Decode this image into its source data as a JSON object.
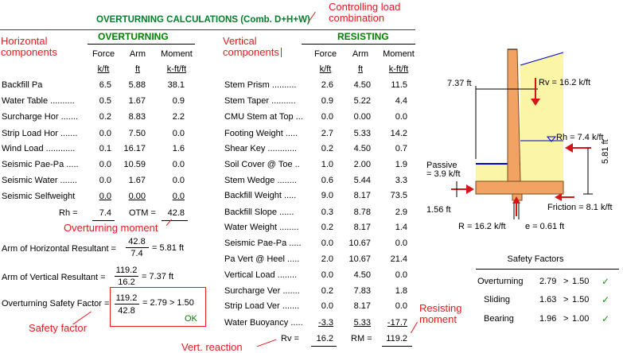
{
  "title": "OVERTURNING CALCULATIONS (Comb. D+H+W)",
  "annotations": {
    "controlling_load": "Controlling load combination",
    "horizontal_components": "Horizontal components",
    "vertical_components": "Vertical components",
    "overturning_moment": "Overturning moment",
    "safety_factor": "Safety factor",
    "resisting_moment": "Resisting moment",
    "vert_reaction": "Vert. reaction"
  },
  "overturning": {
    "heading": "OVERTURNING",
    "col_labels": [
      "Force",
      "Arm",
      "Moment"
    ],
    "col_units": [
      "k/ft",
      "ft",
      "k-ft/ft"
    ],
    "rows": [
      {
        "label": "Backfill Pa",
        "force": "6.5",
        "arm": "5.88",
        "moment": "38.1"
      },
      {
        "label": "Water Table ..........",
        "force": "0.5",
        "arm": "1.67",
        "moment": "0.9"
      },
      {
        "label": "Surcharge Hor .......",
        "force": "0.2",
        "arm": "8.83",
        "moment": "2.2"
      },
      {
        "label": "Strip Load Hor .......",
        "force": "0.0",
        "arm": "7.50",
        "moment": "0.0"
      },
      {
        "label": "Wind Load ............",
        "force": "0.1",
        "arm": "16.17",
        "moment": "1.6"
      },
      {
        "label": "Seismic Pae-Pa .....",
        "force": "0.0",
        "arm": "10.59",
        "moment": "0.0"
      },
      {
        "label": "Seismic Water .......",
        "force": "0.0",
        "arm": "1.67",
        "moment": "0.0"
      },
      {
        "label": "Seismic Selfweight",
        "force": "0.0",
        "arm": "0.00",
        "moment": "0.0"
      }
    ],
    "rh_label": "Rh =",
    "rh_value": "7.4",
    "otm_label": "OTM =",
    "otm_value": "42.8"
  },
  "horizontal_resultant": {
    "label": "Arm of Horizontal Resultant =",
    "numerator": "42.8",
    "denominator": "7.4",
    "result": "= 5.81  ft"
  },
  "vertical_resultant": {
    "label": "Arm of Vertical Resultant =",
    "numerator": "119.2",
    "denominator": "16.2",
    "result": "= 7.37  ft"
  },
  "overturning_sf": {
    "label": "Overturning Safety Factor =",
    "numerator": "119.2",
    "denominator": "42.8",
    "result": "= 2.79 > 1.50",
    "status": "OK"
  },
  "resisting": {
    "heading": "RESISTING",
    "col_labels": [
      "Force",
      "Arm",
      "Moment"
    ],
    "col_units": [
      "k/ft",
      "ft",
      "k-ft/ft"
    ],
    "rows": [
      {
        "label": "Stem Prism ..........",
        "force": "2.6",
        "arm": "4.50",
        "moment": "11.5"
      },
      {
        "label": "Stem Taper ..........",
        "force": "0.9",
        "arm": "5.22",
        "moment": "4.4"
      },
      {
        "label": "CMU Stem at Top ...",
        "force": "0.0",
        "arm": "0.00",
        "moment": "0.0"
      },
      {
        "label": "Footing Weight .....",
        "force": "2.7",
        "arm": "5.33",
        "moment": "14.2"
      },
      {
        "label": "Shear Key ............",
        "force": "0.2",
        "arm": "4.50",
        "moment": "0.7"
      },
      {
        "label": "Soil Cover @ Toe ..",
        "force": "1.0",
        "arm": "2.00",
        "moment": "1.9"
      },
      {
        "label": "Stem Wedge ........",
        "force": "0.6",
        "arm": "5.44",
        "moment": "3.3"
      },
      {
        "label": "Backfill Weight .....",
        "force": "9.0",
        "arm": "8.17",
        "moment": "73.5"
      },
      {
        "label": "Backfill Slope ......",
        "force": "0.3",
        "arm": "8.78",
        "moment": "2.9"
      },
      {
        "label": "Water Weight ........",
        "force": "0.2",
        "arm": "8.17",
        "moment": "1.4"
      },
      {
        "label": "Seismic Pae-Pa .....",
        "force": "0.0",
        "arm": "10.67",
        "moment": "0.0"
      },
      {
        "label": "Pa Vert @ Heel .....",
        "force": "2.0",
        "arm": "10.67",
        "moment": "21.4"
      },
      {
        "label": "Vertical Load ........",
        "force": "0.0",
        "arm": "4.50",
        "moment": "0.0"
      },
      {
        "label": "Surcharge Ver .......",
        "force": "0.2",
        "arm": "7.83",
        "moment": "1.8"
      },
      {
        "label": "Strip Load Ver .......",
        "force": "0.0",
        "arm": "8.17",
        "moment": "0.0"
      },
      {
        "label": "Water Buoyancy .....",
        "force": "-3.3",
        "arm": "5.33",
        "moment": "-17.7"
      }
    ],
    "rv_label": "Rv =",
    "rv_value": "16.2",
    "rm_label": "RM =",
    "rm_value": "119.2"
  },
  "diagram": {
    "dim_737": "7.37 ft",
    "rv": "Rv = 16.2 k/ft",
    "rh": "Rh = 7.4 k/ft",
    "passive": "Passive\n= 3.9 k/ft",
    "dim_581": "5.81 ft",
    "dim_156": "1.56 ft",
    "friction": "Friction = 8.1 k/ft",
    "r": "R = 16.2 k/ft",
    "e": "e = 0.61 ft"
  },
  "safety_factors": {
    "title": "Safety Factors",
    "rows": [
      {
        "label": "Overturning",
        "value": "2.79",
        "op": ">",
        "limit": "1.50"
      },
      {
        "label": "Sliding",
        "value": "1.63",
        "op": ">",
        "limit": "1.50"
      },
      {
        "label": "Bearing",
        "value": "1.96",
        "op": ">",
        "limit": "1.00"
      }
    ]
  },
  "colors": {
    "accent_green": "#008000",
    "annotation_red": "#e8191d",
    "soil_fill": "#fbf5a6",
    "wall_fill": "#f2a262",
    "water_line": "#0000cc"
  }
}
